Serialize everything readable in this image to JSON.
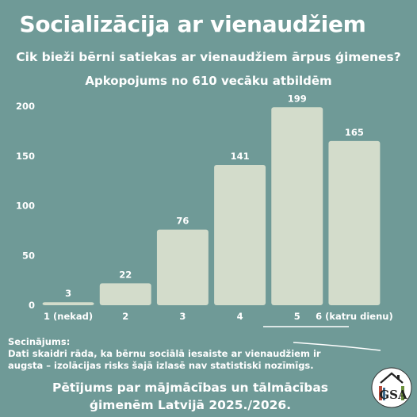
{
  "header": {
    "title": "Socializācija ar vienaudžiem",
    "subtitle": "Cik bieži bērni satiekas ar vienaudžiem ārpus ģimenes?",
    "caption": "Apkopojums no 610 vecāku atbildēm"
  },
  "chart_data": {
    "type": "bar",
    "categories": [
      "1 (nekad)",
      "2",
      "3",
      "4",
      "5",
      "6 (katru dienu)"
    ],
    "values": [
      3,
      22,
      76,
      141,
      199,
      165
    ],
    "ylim": [
      0,
      200
    ],
    "yticks": [
      0,
      50,
      100,
      150,
      200
    ],
    "grid": false,
    "data_labels": true
  },
  "conclusion": {
    "heading": "Secinājums:",
    "line1": "Dati skaidri rāda, ka bērnu sociālā iesaiste ar vienaudžiem ir",
    "line2": "augsta – izolācijas risks šajā izlasē nav statistiski nozīmīgs."
  },
  "footer": {
    "line1": "Pētījums par mājmācības un tālmācības",
    "line2": "ģimenēm Latvijā 2025./2026."
  },
  "logo": {
    "text": "GSA"
  },
  "colors": {
    "background": "#6f9a97",
    "bar": "#d3dccb",
    "text": "#ffffff"
  }
}
